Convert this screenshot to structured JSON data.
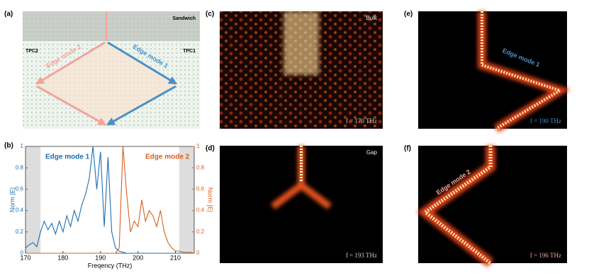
{
  "panels": {
    "a": {
      "label": "(a)",
      "sandwich": "Sandwich",
      "left": "TPC2",
      "right": "TPC1",
      "mode2": "Edge mode 2",
      "mode1": "Edge mode 1"
    },
    "b": {
      "label": "(b)"
    },
    "c": {
      "label": "(c)",
      "tag": "Bulk",
      "freq": "f = 170 THz"
    },
    "d": {
      "label": "(d)",
      "tag": "Gap",
      "freq": "f = 193 THz"
    },
    "e": {
      "label": "(e)",
      "tag": "Edge mode 1",
      "freq": "f = 190 THz"
    },
    "f": {
      "label": "(f)",
      "tag": "Edge mode 2",
      "freq": "f = 196 THz"
    }
  },
  "chart_data": {
    "type": "line",
    "xlabel": "Freqency (THz)",
    "ylabel": "Norm |E|",
    "y2label": "Norm |E|",
    "xlim": [
      170,
      215
    ],
    "xticks": [
      170,
      180,
      190,
      200,
      210
    ],
    "ylim": [
      0,
      1
    ],
    "yticks": [
      0,
      0.2,
      0.4,
      0.6,
      0.8,
      1
    ],
    "y2lim": [
      0,
      1
    ],
    "y2ticks": [
      0,
      0.2,
      0.4,
      0.6,
      0.8,
      1
    ],
    "shaded": [
      [
        170,
        174
      ],
      [
        211,
        215
      ]
    ],
    "x": [
      170,
      171,
      172,
      173,
      174,
      175,
      176,
      177,
      178,
      179,
      180,
      181,
      182,
      183,
      184,
      185,
      186,
      187,
      188,
      189,
      190,
      191,
      192,
      193,
      194,
      195,
      196,
      197,
      198,
      199,
      200,
      201,
      202,
      203,
      204,
      205,
      206,
      207,
      208,
      209,
      210,
      211,
      212,
      213,
      214,
      215
    ],
    "series": [
      {
        "name": "Edge mode 1",
        "color": "#1f6fb0",
        "values": [
          0.05,
          0.08,
          0.1,
          0.06,
          0.2,
          0.3,
          0.22,
          0.28,
          0.18,
          0.3,
          0.2,
          0.35,
          0.25,
          0.4,
          0.3,
          0.45,
          0.55,
          0.7,
          1.0,
          0.6,
          0.95,
          0.25,
          0.9,
          0.2,
          0.05,
          0.02,
          0.01,
          0,
          0,
          0,
          0,
          0,
          0,
          0,
          0,
          0,
          0,
          0,
          0,
          0,
          0,
          0,
          0,
          0,
          0,
          0
        ]
      },
      {
        "name": "Edge mode 2",
        "color": "#d95f1e",
        "axis": "y2",
        "values": [
          0,
          0,
          0,
          0,
          0,
          0,
          0,
          0,
          0,
          0,
          0,
          0,
          0,
          0,
          0,
          0,
          0,
          0,
          0,
          0,
          0,
          0,
          0,
          0,
          0,
          0.05,
          1.0,
          0.55,
          0.2,
          0.3,
          0.25,
          0.5,
          0.3,
          0.4,
          0.35,
          0.25,
          0.4,
          0.2,
          0.1,
          0.05,
          0.02,
          0.02,
          0.01,
          0.01,
          0.01,
          0
        ]
      }
    ]
  }
}
